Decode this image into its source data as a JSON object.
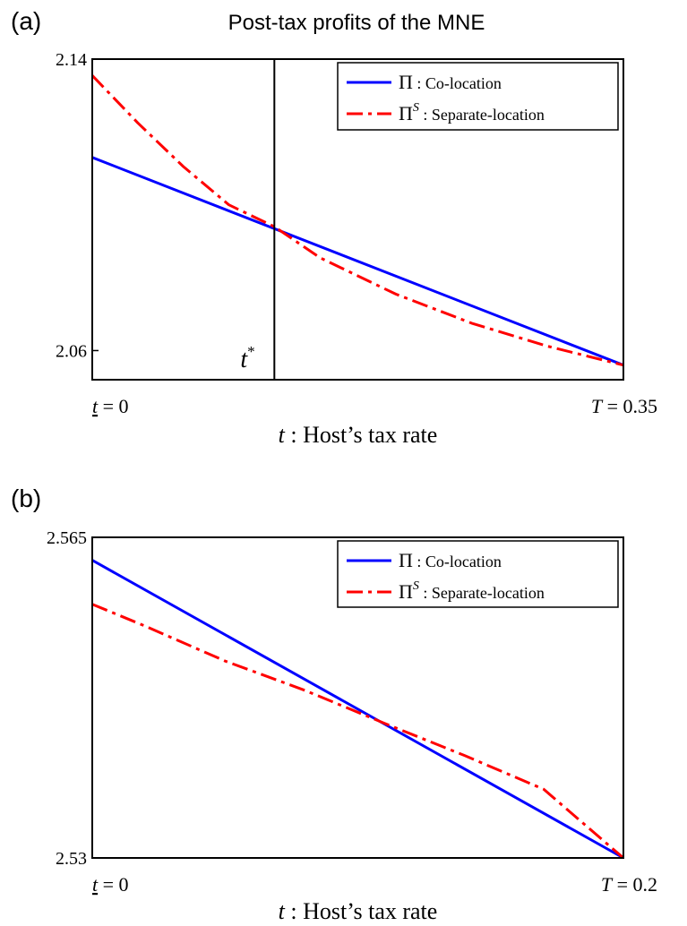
{
  "chart_data": [
    {
      "type": "line",
      "panel_label": "(a)",
      "title": "Post-tax profits of the MNE",
      "xlabel_var": "t",
      "xlabel_text": " : Host’s tax rate",
      "x_tick_left": {
        "var": "t",
        "text": " = 0"
      },
      "x_tick_right": {
        "var": "T",
        "text": " = 0.35"
      },
      "xlim": [
        0,
        0.35
      ],
      "ylim": [
        2.052,
        2.14
      ],
      "yticks": [
        {
          "value": 2.14,
          "label": "2.14"
        },
        {
          "value": 2.06,
          "label": "2.06"
        }
      ],
      "vline": {
        "x": 0.12,
        "label": "t",
        "sup": "*"
      },
      "legend_position": "top-right",
      "series": [
        {
          "name": "Π : Co-location",
          "legend_symbol": "Π",
          "legend_sup": "",
          "legend_text": " : Co-location",
          "color": "#0000ff",
          "style": "solid",
          "x": [
            0,
            0.35
          ],
          "y": [
            2.113,
            2.056
          ]
        },
        {
          "name": "Π^S : Separate-location",
          "legend_symbol": "Π",
          "legend_sup": "S",
          "legend_text": " : Separate-location",
          "color": "#ff0000",
          "style": "dashdot",
          "x": [
            0,
            0.03,
            0.06,
            0.09,
            0.12,
            0.15,
            0.2,
            0.25,
            0.3,
            0.35
          ],
          "y": [
            2.1355,
            2.1225,
            2.1105,
            2.1,
            2.094,
            2.0855,
            2.0755,
            2.0675,
            2.0612,
            2.056
          ]
        }
      ]
    },
    {
      "type": "line",
      "panel_label": "(b)",
      "title": "",
      "xlabel_var": "t",
      "xlabel_text": " : Host’s tax rate",
      "x_tick_left": {
        "var": "t",
        "text": " = 0"
      },
      "x_tick_right": {
        "var": "T",
        "text": " = 0.2"
      },
      "xlim": [
        0,
        0.2
      ],
      "ylim": [
        2.53,
        2.565
      ],
      "yticks": [
        {
          "value": 2.565,
          "label": "2.565"
        },
        {
          "value": 2.53,
          "label": "2.53"
        }
      ],
      "legend_position": "top-right",
      "series": [
        {
          "name": "Π : Co-location",
          "legend_symbol": "Π",
          "legend_sup": "",
          "legend_text": " : Co-location",
          "color": "#0000ff",
          "style": "solid",
          "x": [
            0,
            0.2
          ],
          "y": [
            2.5625,
            2.53
          ]
        },
        {
          "name": "Π^S : Separate-location",
          "legend_symbol": "Π",
          "legend_sup": "S",
          "legend_text": " : Separate-location",
          "color": "#ff0000",
          "style": "dashdot",
          "x": [
            0,
            0.02,
            0.05,
            0.08,
            0.11,
            0.14,
            0.17,
            0.2
          ],
          "y": [
            2.5577,
            2.5553,
            2.5515,
            2.5483,
            2.5447,
            2.5412,
            2.5375,
            2.53
          ]
        }
      ]
    }
  ]
}
